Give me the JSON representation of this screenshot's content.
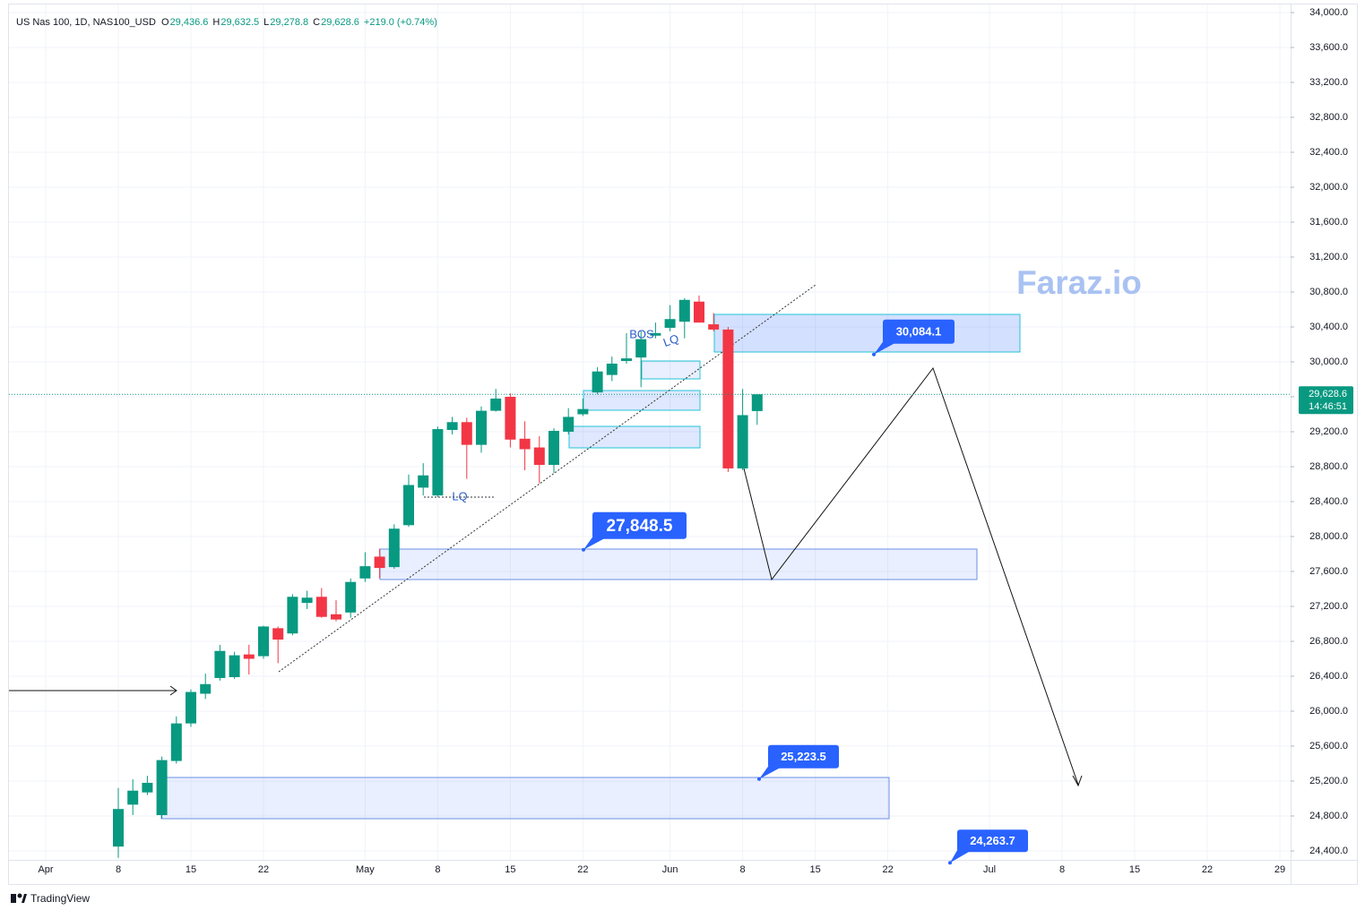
{
  "chart_data": {
    "type": "candlestick",
    "title": "US Nas 100, 1D, NAS100_USD",
    "legend_ohlc": [
      {
        "key": "O",
        "text": "29,436.6"
      },
      {
        "key": "H",
        "text": "29,632.5"
      },
      {
        "key": "L",
        "text": "29,278.8"
      },
      {
        "key": "C",
        "text": "29,628.6"
      }
    ],
    "change": "+219.0 (+0.74%)",
    "categories": [
      "Apr",
      null,
      null,
      null,
      null,
      "8",
      null,
      null,
      null,
      null,
      "15",
      null,
      null,
      null,
      null,
      "22",
      null,
      null,
      null,
      null,
      null,
      null,
      "May",
      null,
      null,
      null,
      null,
      "8",
      null,
      null,
      null,
      null,
      "15",
      null,
      null,
      null,
      null,
      "22",
      null,
      null,
      null,
      null,
      null,
      "Jun",
      null,
      null,
      null,
      null,
      "8",
      null,
      null,
      null,
      null,
      "15",
      null,
      null,
      null,
      null,
      "22",
      null,
      null,
      null,
      null,
      null,
      null,
      "Jul",
      null,
      null,
      null,
      null,
      "8",
      null,
      null,
      null,
      null,
      "15",
      null,
      null,
      null,
      null,
      "22",
      null,
      null,
      null,
      null,
      "29"
    ],
    "open": [
      null,
      null,
      null,
      null,
      null,
      24450,
      24930,
      25070,
      24810,
      25430,
      25860,
      26200,
      26380,
      26390,
      26650,
      26630,
      26950,
      26890,
      27240,
      27310,
      27110,
      27130,
      27520,
      27770,
      27650,
      28130,
      28560,
      28470,
      29220,
      29310,
      29050,
      29440,
      29600,
      29120,
      29020,
      28820,
      29200,
      29400,
      29650,
      29850,
      30010,
      30050,
      30300,
      30390,
      30460,
      30690,
      30430,
      30370,
      28780,
      29436.6,
      null,
      null,
      null,
      null,
      null,
      null,
      null,
      null,
      null,
      null,
      null,
      null,
      null,
      null,
      null,
      null,
      null,
      null,
      null,
      null,
      null,
      null,
      null,
      null,
      null,
      null,
      null,
      null,
      null,
      null,
      null,
      null,
      null,
      null,
      null,
      null
    ],
    "high": [
      null,
      null,
      null,
      null,
      null,
      25120,
      25220,
      25260,
      25480,
      25940,
      26250,
      26430,
      26760,
      26680,
      26760,
      26980,
      26970,
      27340,
      27380,
      27410,
      27270,
      27520,
      27820,
      27860,
      28140,
      28710,
      28840,
      29260,
      29370,
      29360,
      29490,
      29690,
      29640,
      29320,
      29150,
      29240,
      29470,
      29580,
      29940,
      30060,
      30330,
      30350,
      30450,
      30650,
      30730,
      30760,
      30560,
      30400,
      29690,
      29632.5,
      null,
      null,
      null,
      null,
      null,
      null,
      null,
      null,
      null,
      null,
      null,
      null,
      null,
      null,
      null,
      null,
      null,
      null,
      null,
      null,
      null,
      null,
      null,
      null,
      null,
      null,
      null,
      null,
      null,
      null,
      null,
      null,
      null,
      null,
      null,
      null
    ],
    "low": [
      null,
      null,
      null,
      null,
      null,
      24320,
      24810,
      25040,
      24770,
      25400,
      25820,
      26140,
      26350,
      26370,
      26420,
      26600,
      26550,
      26870,
      27170,
      27070,
      27030,
      27070,
      27480,
      27520,
      27630,
      28110,
      28470,
      28450,
      29170,
      28660,
      28960,
      29430,
      29020,
      28760,
      28610,
      28730,
      29170,
      29380,
      29630,
      29780,
      29980,
      29710,
      30270,
      30350,
      30270,
      30450,
      30350,
      28740,
      28760,
      29278.8,
      null,
      null,
      null,
      null,
      null,
      null,
      null,
      null,
      null,
      null,
      null,
      null,
      null,
      null,
      null,
      null,
      null,
      null,
      null,
      null,
      null,
      null,
      null,
      null,
      null,
      null,
      null,
      null,
      null,
      null,
      null,
      null,
      null,
      null,
      null,
      null
    ],
    "close": [
      null,
      null,
      null,
      null,
      null,
      24880,
      25090,
      25180,
      25440,
      25860,
      26220,
      26310,
      26690,
      26640,
      26600,
      26970,
      26820,
      27310,
      27300,
      27080,
      27050,
      27480,
      27660,
      27640,
      28090,
      28590,
      28700,
      29230,
      29310,
      29050,
      29440,
      29580,
      29110,
      29000,
      28820,
      29210,
      29370,
      29460,
      29890,
      29980,
      30040,
      30260,
      30330,
      30490,
      30710,
      30450,
      30370,
      28780,
      29390,
      29628.6,
      null,
      null,
      null,
      null,
      null,
      null,
      null,
      null,
      null,
      null,
      null,
      null,
      null,
      null,
      null,
      null,
      null,
      null,
      null,
      null,
      null,
      null,
      null,
      null,
      null,
      null,
      null,
      null,
      null,
      null,
      null,
      null,
      null,
      null,
      null,
      null
    ],
    "up_color": "#089981",
    "down_color": "#f23645",
    "ylim": [
      24300,
      34100
    ],
    "yticks": [
      {
        "value": 24400,
        "label": "24,400.0"
      },
      {
        "value": 24800,
        "label": "24,800.0"
      },
      {
        "value": 25200,
        "label": "25,200.0"
      },
      {
        "value": 25600,
        "label": "25,600.0"
      },
      {
        "value": 26000,
        "label": "26,000.0"
      },
      {
        "value": 26400,
        "label": "26,400.0"
      },
      {
        "value": 26800,
        "label": "26,800.0"
      },
      {
        "value": 27200,
        "label": "27,200.0"
      },
      {
        "value": 27600,
        "label": "27,600.0"
      },
      {
        "value": 28000,
        "label": "28,000.0"
      },
      {
        "value": 28400,
        "label": "28,400.0"
      },
      {
        "value": 28800,
        "label": "28,800.0"
      },
      {
        "value": 29200,
        "label": "29,200.0"
      },
      {
        "value": 29600,
        "label": "29,600.0"
      },
      {
        "value": 30000,
        "label": "30,000.0"
      },
      {
        "value": 30400,
        "label": "30,400.0"
      },
      {
        "value": 30800,
        "label": "30,800.0"
      },
      {
        "value": 31200,
        "label": "31,200.0"
      },
      {
        "value": 31600,
        "label": "31,600.0"
      },
      {
        "value": 32000,
        "label": "32,000.0"
      },
      {
        "value": 32400,
        "label": "32,400.0"
      },
      {
        "value": 32800,
        "label": "32,800.0"
      },
      {
        "value": 33200,
        "label": "33,200.0"
      },
      {
        "value": 33600,
        "label": "33,600.0"
      },
      {
        "value": 34000,
        "label": "34,000.0"
      }
    ],
    "grid": true,
    "last_price": {
      "value": 29628.6,
      "label": "29,628.6"
    },
    "countdown": "14:46:51",
    "annotations": [
      {
        "value": 30084.1,
        "label": "30,084.1"
      },
      {
        "value": 27848.5,
        "label": "27,848.5"
      },
      {
        "value": 25223.5,
        "label": "25,223.5"
      },
      {
        "value": 24263.7,
        "label": "24,263.7"
      }
    ],
    "text_annotations": [
      "BOS",
      "LQ",
      "LQ"
    ],
    "watermark": "Faraz.io",
    "brand": "TradingView"
  }
}
